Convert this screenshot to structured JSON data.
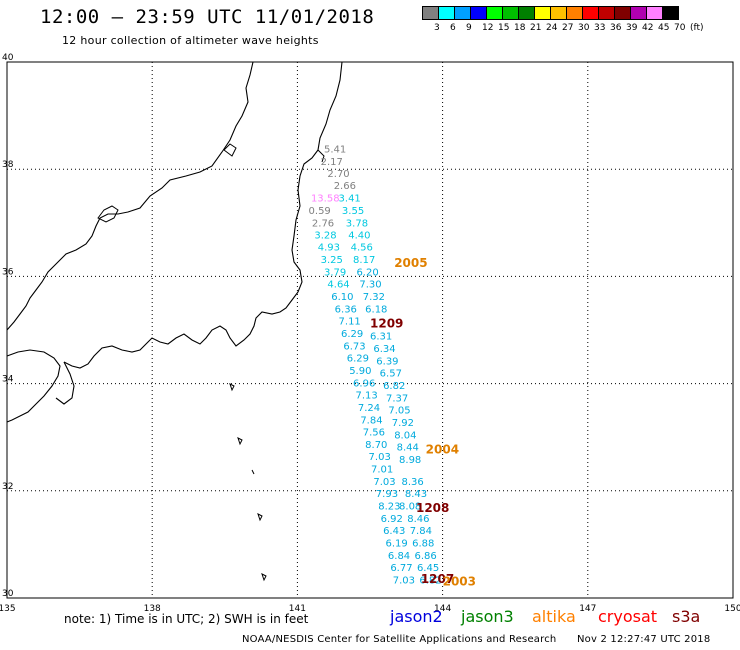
{
  "header": {
    "title": "12:00 – 23:59 UTC 11/01/2018",
    "subtitle": "12 hour collection of altimeter wave heights"
  },
  "legend": {
    "swatches": [
      "#808080",
      "#00ffff",
      "#00a0ff",
      "#0000ff",
      "#00ff00",
      "#00c000",
      "#008000",
      "#ffff00",
      "#ffc000",
      "#ff8000",
      "#ff0000",
      "#c00000",
      "#800000",
      "#b000b0",
      "#ff80ff",
      "#000000"
    ],
    "labels": [
      "3",
      "6",
      "9",
      "12",
      "15",
      "18",
      "21",
      "24",
      "27",
      "30",
      "33",
      "36",
      "39",
      "42",
      "45",
      "70",
      "(ft)"
    ]
  },
  "axes": {
    "lon_labels": [
      "135",
      "138",
      "141",
      "144",
      "147",
      "150"
    ],
    "lat_labels": [
      "40",
      "38",
      "36",
      "34",
      "32",
      "30"
    ]
  },
  "chart_data": {
    "type": "map",
    "lon_range": [
      135,
      150
    ],
    "lat_range": [
      30,
      40
    ],
    "grid": true,
    "units": "ft",
    "wave_heights": [
      {
        "v": "5.41",
        "lon": 141.55,
        "lat": 38.31,
        "color": "#808080"
      },
      {
        "v": "2.17",
        "lon": 141.48,
        "lat": 38.08,
        "color": "#808080"
      },
      {
        "v": "2.70",
        "lon": 141.62,
        "lat": 37.85,
        "color": "#808080"
      },
      {
        "v": "2.66",
        "lon": 141.75,
        "lat": 37.63,
        "color": "#808080"
      },
      {
        "v": "13.58",
        "lon": 141.28,
        "lat": 37.4,
        "color": "#ff80ff"
      },
      {
        "v": "3.41",
        "lon": 141.85,
        "lat": 37.4,
        "color": "#00c8e0"
      },
      {
        "v": "0.59",
        "lon": 141.23,
        "lat": 37.16,
        "color": "#808080"
      },
      {
        "v": "3.55",
        "lon": 141.92,
        "lat": 37.16,
        "color": "#00c8e0"
      },
      {
        "v": "2.76",
        "lon": 141.3,
        "lat": 36.93,
        "color": "#808080"
      },
      {
        "v": "3.78",
        "lon": 142.0,
        "lat": 36.93,
        "color": "#00c8e0"
      },
      {
        "v": "3.28",
        "lon": 141.35,
        "lat": 36.71,
        "color": "#00c8e0"
      },
      {
        "v": "4.40",
        "lon": 142.05,
        "lat": 36.71,
        "color": "#00c8e0"
      },
      {
        "v": "4.93",
        "lon": 141.42,
        "lat": 36.48,
        "color": "#00c8e0"
      },
      {
        "v": "4.56",
        "lon": 142.1,
        "lat": 36.48,
        "color": "#00c8e0"
      },
      {
        "v": "3.25",
        "lon": 141.48,
        "lat": 36.25,
        "color": "#00c8e0"
      },
      {
        "v": "8.17",
        "lon": 142.15,
        "lat": 36.25,
        "color": "#00c8e0"
      },
      {
        "v": "3.79",
        "lon": 141.55,
        "lat": 36.02,
        "color": "#00c8e0"
      },
      {
        "v": "6.20",
        "lon": 142.22,
        "lat": 36.02,
        "color": "#00aadd"
      },
      {
        "v": "4.64",
        "lon": 141.62,
        "lat": 35.79,
        "color": "#00c8e0"
      },
      {
        "v": "7.30",
        "lon": 142.28,
        "lat": 35.79,
        "color": "#00aadd"
      },
      {
        "v": "6.10",
        "lon": 141.7,
        "lat": 35.56,
        "color": "#00aadd"
      },
      {
        "v": "7.32",
        "lon": 142.35,
        "lat": 35.56,
        "color": "#00aadd"
      },
      {
        "v": "6.36",
        "lon": 141.77,
        "lat": 35.33,
        "color": "#00aadd"
      },
      {
        "v": "6.18",
        "lon": 142.4,
        "lat": 35.33,
        "color": "#00aadd"
      },
      {
        "v": "7.11",
        "lon": 141.85,
        "lat": 35.1,
        "color": "#00aadd"
      },
      {
        "v": "6.29",
        "lon": 141.9,
        "lat": 34.87,
        "color": "#00aadd"
      },
      {
        "v": "6.31",
        "lon": 142.5,
        "lat": 34.82,
        "color": "#00aadd"
      },
      {
        "v": "6.73",
        "lon": 141.95,
        "lat": 34.64,
        "color": "#00aadd"
      },
      {
        "v": "6.34",
        "lon": 142.57,
        "lat": 34.59,
        "color": "#00aadd"
      },
      {
        "v": "6.29",
        "lon": 142.02,
        "lat": 34.41,
        "color": "#00aadd"
      },
      {
        "v": "6.39",
        "lon": 142.63,
        "lat": 34.36,
        "color": "#00aadd"
      },
      {
        "v": "5.90",
        "lon": 142.07,
        "lat": 34.18,
        "color": "#00aadd"
      },
      {
        "v": "6.57",
        "lon": 142.7,
        "lat": 34.13,
        "color": "#00aadd"
      },
      {
        "v": "6.96",
        "lon": 142.15,
        "lat": 33.95,
        "color": "#00aadd"
      },
      {
        "v": "6.82",
        "lon": 142.77,
        "lat": 33.9,
        "color": "#00aadd"
      },
      {
        "v": "7.13",
        "lon": 142.2,
        "lat": 33.72,
        "color": "#00aadd"
      },
      {
        "v": "7.37",
        "lon": 142.83,
        "lat": 33.67,
        "color": "#00aadd"
      },
      {
        "v": "7.24",
        "lon": 142.25,
        "lat": 33.49,
        "color": "#00aadd"
      },
      {
        "v": "7.05",
        "lon": 142.88,
        "lat": 33.44,
        "color": "#00aadd"
      },
      {
        "v": "7.84",
        "lon": 142.3,
        "lat": 33.26,
        "color": "#00aadd"
      },
      {
        "v": "7.92",
        "lon": 142.95,
        "lat": 33.21,
        "color": "#00aadd"
      },
      {
        "v": "7.56",
        "lon": 142.35,
        "lat": 33.03,
        "color": "#00aadd"
      },
      {
        "v": "8.04",
        "lon": 143.0,
        "lat": 32.98,
        "color": "#00aadd"
      },
      {
        "v": "8.70",
        "lon": 142.4,
        "lat": 32.8,
        "color": "#00aadd"
      },
      {
        "v": "8.44",
        "lon": 143.05,
        "lat": 32.75,
        "color": "#00aadd"
      },
      {
        "v": "7.03",
        "lon": 142.47,
        "lat": 32.57,
        "color": "#00aadd"
      },
      {
        "v": "8.98",
        "lon": 143.1,
        "lat": 32.52,
        "color": "#00aadd"
      },
      {
        "v": "7.01",
        "lon": 142.52,
        "lat": 32.34,
        "color": "#00aadd"
      },
      {
        "v": "7.03",
        "lon": 142.57,
        "lat": 32.11,
        "color": "#00aadd"
      },
      {
        "v": "8.36",
        "lon": 143.15,
        "lat": 32.11,
        "color": "#00aadd"
      },
      {
        "v": "7.93",
        "lon": 142.62,
        "lat": 31.88,
        "color": "#00aadd"
      },
      {
        "v": "8.43",
        "lon": 143.22,
        "lat": 31.88,
        "color": "#00aadd"
      },
      {
        "v": "8.23",
        "lon": 142.67,
        "lat": 31.65,
        "color": "#00aadd"
      },
      {
        "v": "8.08",
        "lon": 143.1,
        "lat": 31.65,
        "color": "#00aadd"
      },
      {
        "v": "6.92",
        "lon": 142.72,
        "lat": 31.42,
        "color": "#00aadd"
      },
      {
        "v": "8.46",
        "lon": 143.27,
        "lat": 31.42,
        "color": "#00aadd"
      },
      {
        "v": "6.43",
        "lon": 142.77,
        "lat": 31.19,
        "color": "#00aadd"
      },
      {
        "v": "7.84",
        "lon": 143.32,
        "lat": 31.19,
        "color": "#00aadd"
      },
      {
        "v": "6.19",
        "lon": 142.82,
        "lat": 30.96,
        "color": "#00aadd"
      },
      {
        "v": "6.88",
        "lon": 143.37,
        "lat": 30.96,
        "color": "#00aadd"
      },
      {
        "v": "6.84",
        "lon": 142.87,
        "lat": 30.73,
        "color": "#00aadd"
      },
      {
        "v": "6.86",
        "lon": 143.42,
        "lat": 30.73,
        "color": "#00aadd"
      },
      {
        "v": "6.77",
        "lon": 142.92,
        "lat": 30.5,
        "color": "#00aadd"
      },
      {
        "v": "6.45",
        "lon": 143.47,
        "lat": 30.5,
        "color": "#00aadd"
      },
      {
        "v": "7.03",
        "lon": 142.97,
        "lat": 30.27,
        "color": "#00aadd"
      },
      {
        "v": "6.82",
        "lon": 143.52,
        "lat": 30.27,
        "color": "#00aadd"
      }
    ],
    "cycle_labels": [
      {
        "v": "2005",
        "lon": 143.0,
        "lat": 36.18,
        "color": "#e08000"
      },
      {
        "v": "1209",
        "lon": 142.5,
        "lat": 35.05,
        "color": "#800000"
      },
      {
        "v": "2004",
        "lon": 143.65,
        "lat": 32.7,
        "color": "#e08000"
      },
      {
        "v": "1208",
        "lon": 143.45,
        "lat": 31.6,
        "color": "#800000"
      },
      {
        "v": "1207",
        "lon": 143.55,
        "lat": 30.28,
        "color": "#800000"
      },
      {
        "v": "2003",
        "lon": 144.0,
        "lat": 30.23,
        "color": "#e08000"
      }
    ]
  },
  "footer": {
    "note": "note:  1) Time is in UTC;  2) SWH is in feet",
    "satellites": [
      {
        "name": "jason2",
        "color": "#0000dd"
      },
      {
        "name": "jason3",
        "color": "#008000"
      },
      {
        "name": "altika",
        "color": "#ff8000"
      },
      {
        "name": "cryosat",
        "color": "#ff0000"
      },
      {
        "name": "s3a",
        "color": "#800000"
      }
    ],
    "credit": "NOAA/NESDIS Center for Satellite Applications and Research",
    "timestamp": "Nov  2 12:27:47 UTC 2018"
  }
}
